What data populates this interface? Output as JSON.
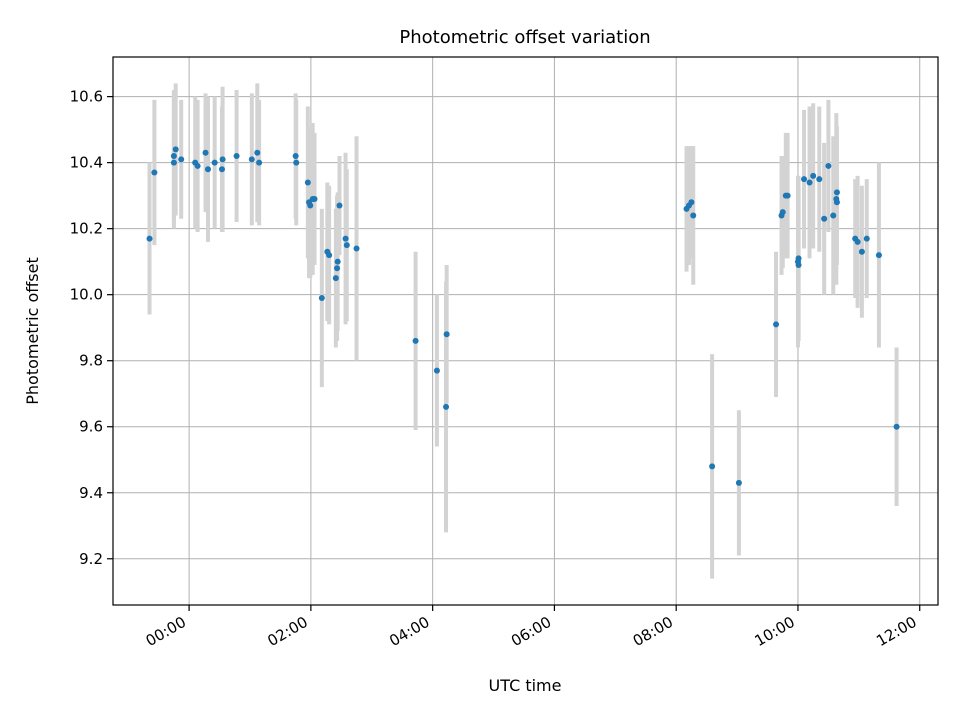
{
  "chart_data": {
    "type": "scatter",
    "title": "Photometric offset variation",
    "xlabel": "UTC time",
    "ylabel": "Photometric offset",
    "x_unit": "hours",
    "xlim": [
      -1.25,
      12.3
    ],
    "ylim": [
      9.06,
      10.72
    ],
    "x_ticks": [
      0,
      2,
      4,
      6,
      8,
      10,
      12
    ],
    "x_tick_labels": [
      "00:00",
      "02:00",
      "04:00",
      "06:00",
      "08:00",
      "10:00",
      "12:00"
    ],
    "y_ticks": [
      9.2,
      9.4,
      9.6,
      9.8,
      10.0,
      10.2,
      10.4,
      10.6
    ],
    "y_tick_labels": [
      "9.2",
      "9.4",
      "9.6",
      "9.8",
      "10.0",
      "10.2",
      "10.4",
      "10.6"
    ],
    "grid": true,
    "legend": false,
    "colors": {
      "point": "#1f77b4",
      "errorbar": "#d3d3d3",
      "grid": "#b0b0b0",
      "axes": "#000000"
    },
    "series": [
      {
        "x": [
          -0.65,
          -0.57,
          -0.25,
          -0.25,
          -0.22,
          -0.13,
          0.1,
          0.14,
          0.27,
          0.31,
          0.42,
          0.54,
          0.55,
          0.78,
          1.03,
          1.12,
          1.15,
          1.75,
          1.76,
          1.95,
          1.97,
          1.99,
          2.03,
          2.06,
          2.18,
          2.27,
          2.3,
          2.41,
          2.43,
          2.44,
          2.47,
          2.57,
          2.59,
          2.75,
          3.72,
          4.07,
          4.22,
          4.23,
          8.17,
          8.21,
          8.25,
          8.28,
          8.59,
          9.03,
          9.64,
          9.73,
          9.75,
          9.8,
          9.83,
          10.0,
          10.01,
          10.01,
          10.1,
          10.19,
          10.25,
          10.35,
          10.43,
          10.5,
          10.58,
          10.63,
          10.64,
          10.64,
          10.94,
          10.98,
          11.05,
          11.13,
          11.33,
          11.62
        ],
        "y": [
          10.17,
          10.37,
          10.4,
          10.42,
          10.44,
          10.41,
          10.4,
          10.39,
          10.43,
          10.38,
          10.4,
          10.38,
          10.41,
          10.42,
          10.41,
          10.43,
          10.4,
          10.42,
          10.4,
          10.34,
          10.28,
          10.27,
          10.29,
          10.29,
          9.99,
          10.13,
          10.12,
          10.05,
          10.08,
          10.1,
          10.27,
          10.17,
          10.15,
          10.14,
          9.86,
          9.77,
          9.66,
          9.88,
          10.26,
          10.27,
          10.28,
          10.24,
          9.48,
          9.43,
          9.91,
          10.24,
          10.25,
          10.3,
          10.3,
          10.1,
          10.11,
          10.09,
          10.35,
          10.34,
          10.36,
          10.35,
          10.23,
          10.39,
          10.24,
          10.29,
          10.28,
          10.31,
          10.17,
          10.16,
          10.13,
          10.17,
          10.12,
          9.6
        ],
        "yerr": [
          0.23,
          0.22,
          0.2,
          0.2,
          0.2,
          0.18,
          0.2,
          0.2,
          0.18,
          0.22,
          0.2,
          0.19,
          0.22,
          0.2,
          0.2,
          0.21,
          0.19,
          0.19,
          0.19,
          0.23,
          0.23,
          0.22,
          0.23,
          0.2,
          0.27,
          0.21,
          0.21,
          0.21,
          0.22,
          0.21,
          0.15,
          0.26,
          0.23,
          0.34,
          0.27,
          0.23,
          0.38,
          0.21,
          0.19,
          0.18,
          0.17,
          0.21,
          0.34,
          0.22,
          0.22,
          0.18,
          0.17,
          0.19,
          0.19,
          0.26,
          0.25,
          0.23,
          0.21,
          0.23,
          0.22,
          0.22,
          0.23,
          0.2,
          0.24,
          0.26,
          0.19,
          0.2,
          0.18,
          0.2,
          0.2,
          0.18,
          0.28,
          0.24
        ]
      }
    ]
  }
}
